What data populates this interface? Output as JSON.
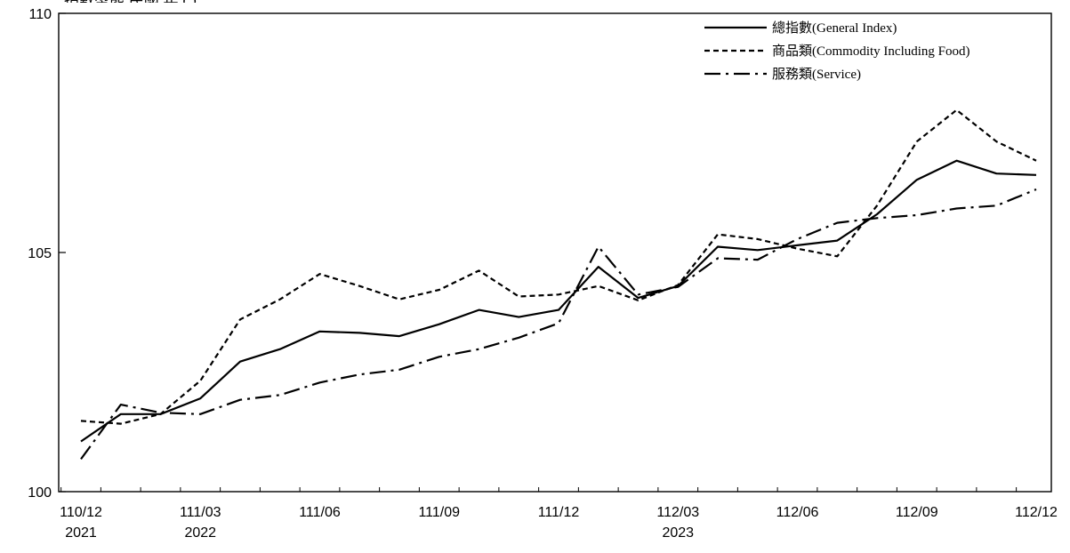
{
  "chart_data": {
    "type": "line",
    "title": "",
    "xlabel": "",
    "ylabel": "",
    "ylim": [
      100,
      110
    ],
    "yticks": [
      "100",
      "105",
      "110"
    ],
    "x": [
      "110/12",
      "111/01",
      "111/02",
      "111/03",
      "111/04",
      "111/05",
      "111/06",
      "111/07",
      "111/08",
      "111/09",
      "111/10",
      "111/11",
      "111/12",
      "112/01",
      "112/02",
      "112/03",
      "112/04",
      "112/05",
      "112/06",
      "112/07",
      "112/08",
      "112/09",
      "112/10",
      "112/11",
      "112/12"
    ],
    "xtick_labels": [
      {
        "index": 0,
        "label": "110/12",
        "year": "2021"
      },
      {
        "index": 3,
        "label": "111/03",
        "year": "2022"
      },
      {
        "index": 6,
        "label": "111/06",
        "year": ""
      },
      {
        "index": 9,
        "label": "111/09",
        "year": ""
      },
      {
        "index": 12,
        "label": "111/12",
        "year": ""
      },
      {
        "index": 15,
        "label": "112/03",
        "year": "2023"
      },
      {
        "index": 18,
        "label": "112/06",
        "year": ""
      },
      {
        "index": 21,
        "label": "112/09",
        "year": ""
      },
      {
        "index": 24,
        "label": "112/12",
        "year": ""
      }
    ],
    "series": [
      {
        "name": "總指數(General Index)",
        "style": "solid",
        "values": [
          101.05,
          101.62,
          101.62,
          101.95,
          102.72,
          102.98,
          103.35,
          103.32,
          103.25,
          103.5,
          103.8,
          103.65,
          103.8,
          104.7,
          104.05,
          104.3,
          105.12,
          105.05,
          105.15,
          105.25,
          105.8,
          106.52,
          106.92,
          106.65,
          106.62
        ],
        "color": "#000000"
      },
      {
        "name": "商品類(Commodity Including Food)",
        "style": "dashed",
        "values": [
          101.48,
          101.42,
          101.62,
          102.32,
          103.6,
          104.02,
          104.55,
          104.3,
          104.02,
          104.22,
          104.62,
          104.08,
          104.12,
          104.3,
          104.0,
          104.32,
          105.38,
          105.28,
          105.08,
          104.92,
          105.98,
          107.32,
          107.98,
          107.32,
          106.92
        ],
        "color": "#000000"
      },
      {
        "name": "服務類(Service)",
        "style": "dashdot",
        "values": [
          100.68,
          101.82,
          101.65,
          101.62,
          101.92,
          102.02,
          102.28,
          102.45,
          102.55,
          102.82,
          102.98,
          103.22,
          103.52,
          105.12,
          104.12,
          104.28,
          104.88,
          104.85,
          105.28,
          105.62,
          105.72,
          105.78,
          105.92,
          105.98,
          106.32
        ],
        "color": "#000000"
      }
    ],
    "legend_position": "top-right",
    "grid": false
  },
  "top_caption": "指數型態   民國   年   (                                    )"
}
